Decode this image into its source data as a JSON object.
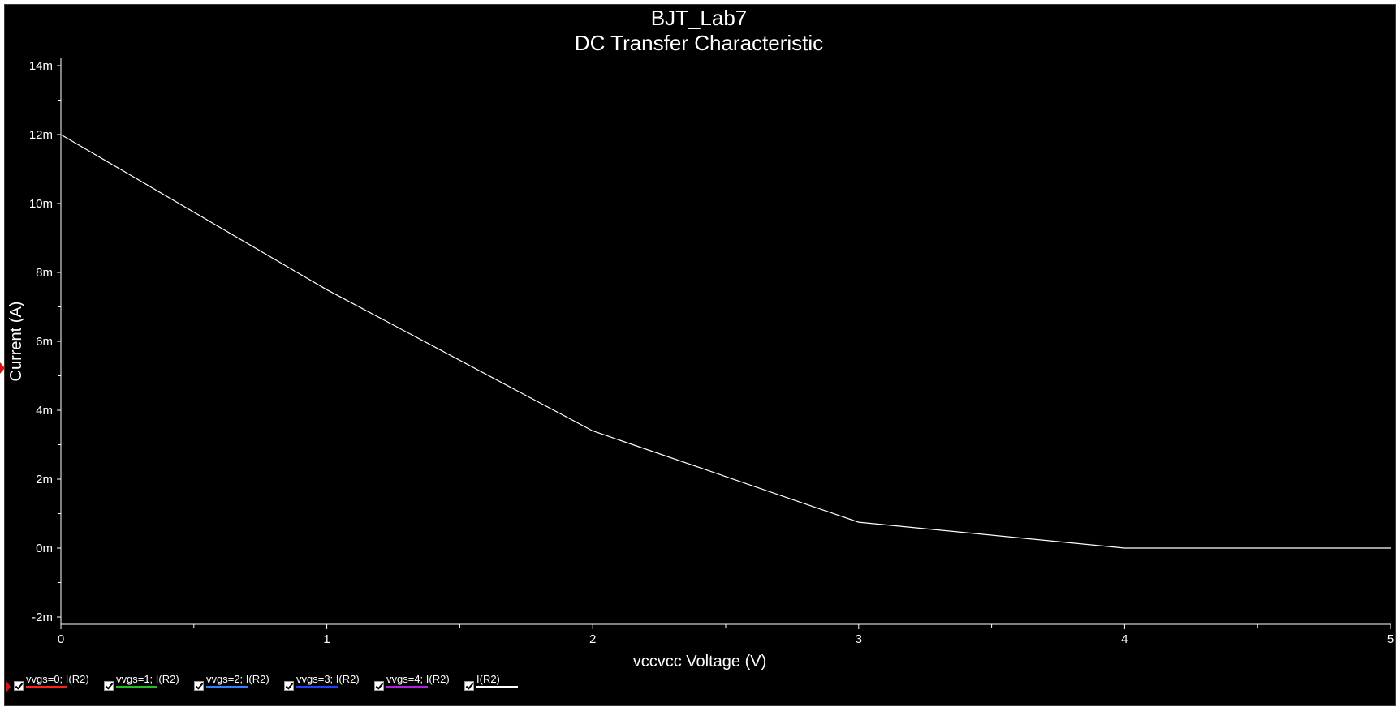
{
  "chart_data": {
    "type": "line",
    "title": "BJT_Lab7",
    "subtitle": "DC Transfer Characteristic",
    "xlabel": "vccvcc Voltage (V)",
    "ylabel": "Current (A)",
    "xlim": [
      0,
      5
    ],
    "ylim": [
      -2,
      14
    ],
    "x_ticks": [
      "0",
      "1",
      "2",
      "3",
      "4",
      "5"
    ],
    "y_ticks": [
      "14m",
      "12m",
      "10m",
      "8m",
      "6m",
      "4m",
      "2m",
      "0m",
      "-2m"
    ],
    "grid": false,
    "legend_position": "bottom-left",
    "series": [
      {
        "name": "I(R2)",
        "color": "#ffffff",
        "x": [
          0,
          1,
          2,
          3,
          4,
          5
        ],
        "y": [
          12.0,
          7.5,
          3.4,
          0.75,
          0.0,
          0.0
        ]
      }
    ],
    "legend": [
      {
        "label": "vvgs=0; I(R2)",
        "color": "#ff2020",
        "checked": true
      },
      {
        "label": "vvgs=1; I(R2)",
        "color": "#20c020",
        "checked": true
      },
      {
        "label": "vvgs=2; I(R2)",
        "color": "#3080ff",
        "checked": true
      },
      {
        "label": "vvgs=3; I(R2)",
        "color": "#2040ff",
        "checked": true
      },
      {
        "label": "vvgs=4; I(R2)",
        "color": "#b020e0",
        "checked": true
      },
      {
        "label": "I(R2)",
        "color": "#ffffff",
        "checked": true
      }
    ]
  }
}
